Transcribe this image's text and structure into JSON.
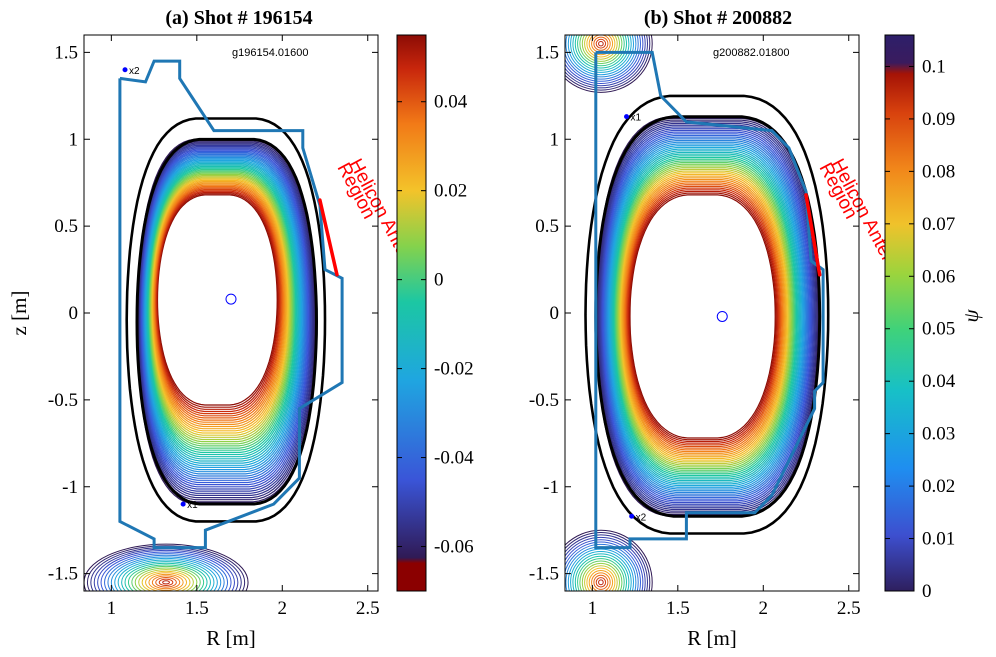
{
  "colors": {
    "wall": "#1f77b4",
    "separatrix": "#000000",
    "antenna": "#ff0000",
    "axis_marker": "#0000ff"
  },
  "chart_data": [
    {
      "type": "contour",
      "title": "(a) Shot # 196154",
      "gfile_label": "g196154.01600",
      "xlabel": "R [m]",
      "ylabel": "z [m]",
      "xlim": [
        0.84,
        2.56
      ],
      "ylim": [
        -1.6,
        1.6
      ],
      "x_ticks": [
        1,
        1.5,
        2,
        2.5
      ],
      "x_tick_labels": [
        "1",
        "1.5",
        "2",
        "2.5"
      ],
      "y_ticks": [
        -1.5,
        -1,
        -0.5,
        0,
        0.5,
        1,
        1.5
      ],
      "y_tick_labels": [
        "-1.5",
        "-1",
        "-0.5",
        "0",
        "0.5",
        "1",
        "1.5"
      ],
      "magnetic_axis": [
        1.7,
        0.08
      ],
      "separatrix_top": 1.0,
      "separatrix_bottom": -1.1,
      "separatrix_outboard": 2.2,
      "separatrix_inboard": 1.15,
      "core_boundary": {
        "r_in": 1.27,
        "r_out": 1.97,
        "z_top": 0.68,
        "z_bot": -0.53
      },
      "xpoint_labels": [
        {
          "text": "x2",
          "r": 1.08,
          "z": 1.4
        },
        {
          "text": "x1",
          "r": 1.42,
          "z": -1.1
        }
      ],
      "antenna_label": [
        "Helicon Antenna",
        "Region"
      ],
      "colorbar": {
        "min": -0.07,
        "max": 0.055,
        "ticks": [
          -0.06,
          -0.04,
          -0.02,
          0,
          0.02,
          0.04
        ],
        "tick_labels": [
          "-0.06",
          "-0.04",
          "-0.02",
          "0",
          "0.02",
          "0.04"
        ],
        "label": ""
      }
    },
    {
      "type": "contour",
      "title": "(b) Shot # 200882",
      "gfile_label": "g200882.01800",
      "xlabel": "R [m]",
      "ylabel": "",
      "xlim": [
        0.84,
        2.56
      ],
      "ylim": [
        -1.6,
        1.6
      ],
      "x_ticks": [
        1,
        1.5,
        2,
        2.5
      ],
      "x_tick_labels": [
        "1",
        "1.5",
        "2",
        "2.5"
      ],
      "y_ticks": [
        -1.5,
        -1,
        -0.5,
        0,
        0.5,
        1,
        1.5
      ],
      "y_tick_labels": [
        "-1.5",
        "-1",
        "-0.5",
        "0",
        "0.5",
        "1",
        "1.5"
      ],
      "magnetic_axis": [
        1.76,
        -0.02
      ],
      "separatrix_top": 1.13,
      "separatrix_bottom": -1.17,
      "separatrix_outboard": 2.33,
      "separatrix_inboard": 1.02,
      "core_boundary": {
        "r_in": 1.22,
        "r_out": 2.07,
        "z_top": 0.68,
        "z_bot": -0.72
      },
      "xpoint_labels": [
        {
          "text": "x1",
          "r": 1.2,
          "z": 1.13
        },
        {
          "text": "x2",
          "r": 1.23,
          "z": -1.17
        }
      ],
      "antenna_label": [
        "Helicon Antenna",
        "Region"
      ],
      "colorbar": {
        "min": 0,
        "max": 0.106,
        "ticks": [
          0,
          0.01,
          0.02,
          0.03,
          0.04,
          0.05,
          0.06,
          0.07,
          0.08,
          0.09,
          0.1
        ],
        "tick_labels": [
          "0",
          "0.01",
          "0.02",
          "0.03",
          "0.04",
          "0.05",
          "0.06",
          "0.07",
          "0.08",
          "0.09",
          "0.1"
        ],
        "label": "ψ"
      }
    }
  ]
}
